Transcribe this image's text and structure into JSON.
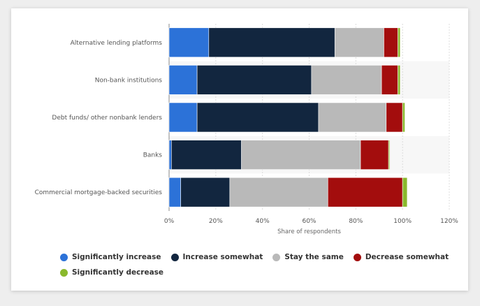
{
  "chart_data": {
    "type": "bar",
    "orientation": "horizontal",
    "stacked": true,
    "categories": [
      "Alternative lending platforms",
      "Non-bank institutions",
      "Debt funds/ other nonbank lenders",
      "Banks",
      "Commercial mortgage-backed securities"
    ],
    "series": [
      {
        "name": "Significantly increase",
        "color": "#2c72d8",
        "values": [
          17,
          12,
          12,
          1,
          5
        ]
      },
      {
        "name": "Increase somewhat",
        "color": "#12263f",
        "values": [
          54,
          49,
          52,
          30,
          21
        ]
      },
      {
        "name": "Stay the same",
        "color": "#b9b9b9",
        "values": [
          21,
          30,
          29,
          51,
          42
        ]
      },
      {
        "name": "Decrease somewhat",
        "color": "#a30d0d",
        "values": [
          6,
          7,
          7,
          12,
          32
        ]
      },
      {
        "name": "Significantly decrease",
        "color": "#8ab92d",
        "values": [
          1,
          1,
          1,
          0.5,
          2
        ]
      }
    ],
    "xlabel": "Share of respondents",
    "xlim": [
      0,
      120
    ],
    "xticks": [
      "0%",
      "20%",
      "40%",
      "60%",
      "80%",
      "100%",
      "120%"
    ],
    "grid": true,
    "legend_position": "bottom"
  }
}
